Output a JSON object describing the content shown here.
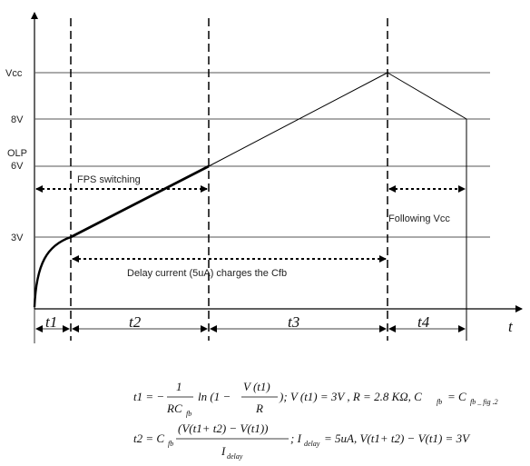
{
  "axes": {
    "y_labels": {
      "vcc": "Vcc",
      "v8": "8V",
      "olp": "OLP",
      "v6": "6V",
      "v3": "3V"
    },
    "t_axis": "t"
  },
  "intervals": [
    "t1",
    "t2",
    "t3",
    "t4"
  ],
  "annotations": {
    "fps_switching": "FPS switching",
    "following_vcc": "Following Vcc",
    "delay_current": "Delay current (5uA) charges the Cfb"
  },
  "equations": {
    "eq1": {
      "lhs": "t1 = −",
      "num": "1",
      "den": "RC",
      "den_sub": "fb",
      "ln": "ln (1 −",
      "frac2_num": "V (t1)",
      "frac2_den": "R",
      "rest": "); V (t1) = 3V , R = 2.8 KΩ, C",
      "c_sub": "fb",
      "c_eq": "= C",
      "c2_sub": "fb _ fig .2"
    },
    "eq2": {
      "lhs": "t2 = C",
      "lhs_sub": "fb",
      "num": "(V(t1+ t2) − V(t1))",
      "den": "I",
      "den_sub": "delay",
      "rest1": "; I",
      "rest_sub": "delay",
      "rest2": "= 5uA, V(t1+ t2) − V(t1) = 3V"
    }
  }
}
